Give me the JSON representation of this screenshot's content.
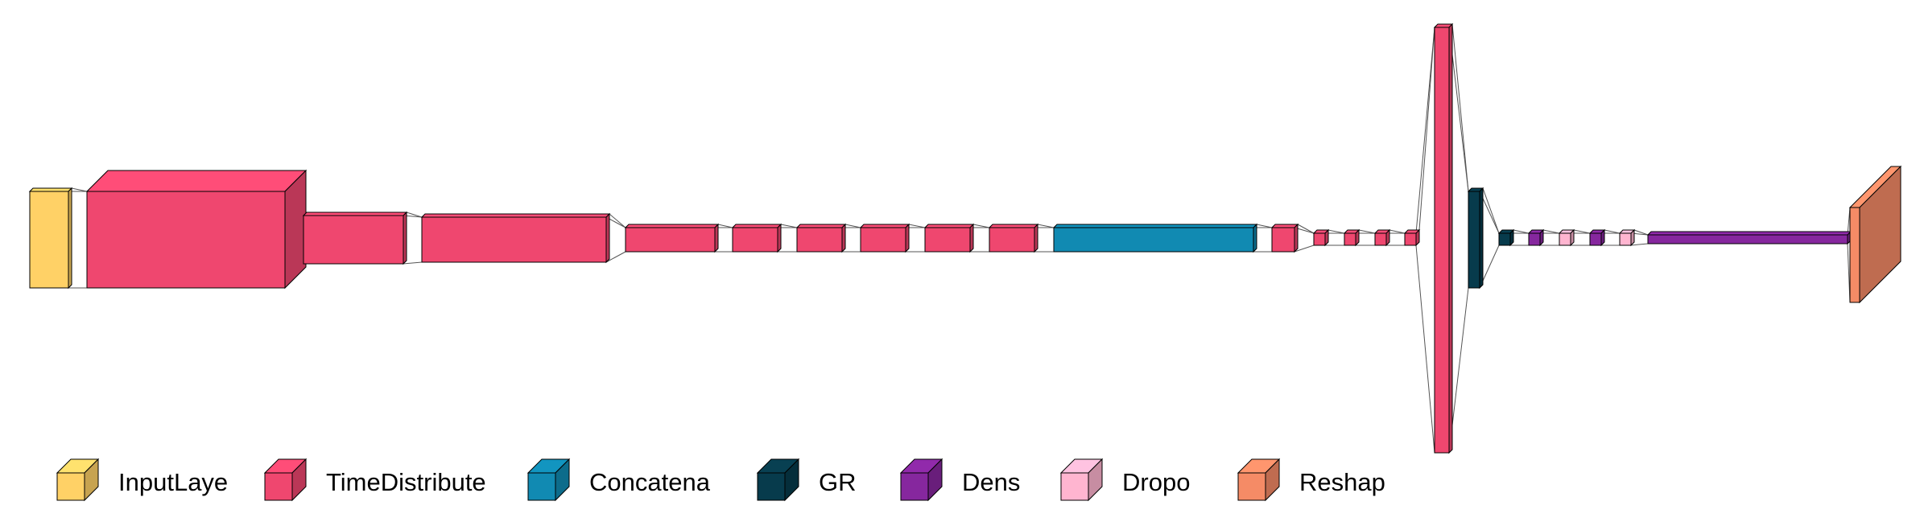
{
  "colors": {
    "input": "#FFD166",
    "timedistributed": "#EF476F",
    "concatenate": "#118AB2",
    "gru": "#073B4C",
    "dense": "#86279E",
    "dropout": "#FFB5D0",
    "reshape": "#F58B66",
    "stroke": "#000000",
    "connector": "#555555"
  },
  "legend": [
    {
      "label": "InputLaye",
      "color_key": "input"
    },
    {
      "label": "TimeDistribute",
      "color_key": "timedistributed"
    },
    {
      "label": "Concatena",
      "color_key": "concatenate"
    },
    {
      "label": "GR",
      "color_key": "gru"
    },
    {
      "label": "Dens",
      "color_key": "dense"
    },
    {
      "label": "Dropo",
      "color_key": "dropout"
    },
    {
      "label": "Reshap",
      "color_key": "reshape"
    }
  ],
  "layers": [
    {
      "name": "input-layer-block",
      "type": "input"
    },
    {
      "name": "timedistributed-layer-1",
      "type": "timedistributed"
    },
    {
      "name": "timedistributed-layer-2",
      "type": "timedistributed"
    },
    {
      "name": "timedistributed-layer-3",
      "type": "timedistributed"
    },
    {
      "name": "timedistributed-layer-4",
      "type": "timedistributed"
    },
    {
      "name": "timedistributed-layer-5",
      "type": "timedistributed"
    },
    {
      "name": "timedistributed-layer-6",
      "type": "timedistributed"
    },
    {
      "name": "timedistributed-layer-7",
      "type": "timedistributed"
    },
    {
      "name": "timedistributed-layer-8",
      "type": "timedistributed"
    },
    {
      "name": "timedistributed-layer-9",
      "type": "timedistributed"
    },
    {
      "name": "concatenate-layer",
      "type": "concatenate"
    },
    {
      "name": "timedistributed-layer-10",
      "type": "timedistributed"
    },
    {
      "name": "timedistributed-layer-11",
      "type": "timedistributed"
    },
    {
      "name": "timedistributed-layer-12",
      "type": "timedistributed"
    },
    {
      "name": "timedistributed-layer-13",
      "type": "timedistributed"
    },
    {
      "name": "timedistributed-layer-14",
      "type": "timedistributed"
    },
    {
      "name": "timedistributed-layer-15",
      "type": "timedistributed"
    },
    {
      "name": "gru-layer-1",
      "type": "gru"
    },
    {
      "name": "gru-layer-2",
      "type": "gru"
    },
    {
      "name": "dense-layer-1",
      "type": "dense"
    },
    {
      "name": "dropout-layer-1",
      "type": "dropout"
    },
    {
      "name": "dense-layer-2",
      "type": "dense"
    },
    {
      "name": "dropout-layer-2",
      "type": "dropout"
    },
    {
      "name": "dense-layer-3",
      "type": "dense"
    },
    {
      "name": "reshape-layer",
      "type": "reshape"
    }
  ]
}
